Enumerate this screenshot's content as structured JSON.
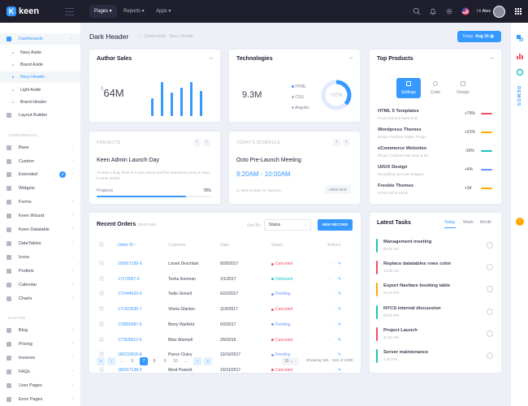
{
  "topbar": {
    "logo": "keen",
    "nav": [
      "Pages",
      "Reports",
      "Apps"
    ],
    "user_greeting": "Hi",
    "user_name": "Alex"
  },
  "sidebar": {
    "top_items": [
      {
        "label": "Dashboards"
      }
    ],
    "dash_sub": [
      "Navy Aside",
      "Brand Aside",
      "Navy Header",
      "Light Aside",
      "Brand Header"
    ],
    "layout_builder": "Layout Builder",
    "components_head": "COMPONENTS",
    "components": [
      "Base",
      "Custom",
      "Extended",
      "Widgets",
      "Forms",
      "Keen Wizard",
      "Keen Datatable",
      "DataTables",
      "Icons",
      "Portlets",
      "Calendar",
      "Charts"
    ],
    "extended_badge": "2",
    "custom_head": "CUSTOM",
    "custom": [
      "Blog",
      "Pricing",
      "Invoices",
      "FAQs",
      "User Pages",
      "Error Pages"
    ]
  },
  "subheader": {
    "title": "Dark Header",
    "crumbs": [
      "Dashboards",
      "Navy Header"
    ],
    "date_label": "Today:",
    "date_value": "Aug 16"
  },
  "author_sales": {
    "title": "Author Sales",
    "currency": "$",
    "value": "64M",
    "bars": [
      0.5,
      0.95,
      0.65,
      0.8,
      0.95,
      0.7
    ]
  },
  "technologies": {
    "title": "Technologies",
    "value": "9.3M",
    "legend": [
      "HTML",
      "CSS",
      "Angular"
    ],
    "percent": "+37%",
    "percent_value": 0.37
  },
  "top_products": {
    "title": "Top Products",
    "tabs": [
      "Settings",
      "Code",
      "Design"
    ],
    "items": [
      {
        "name": "HTML 5 Templates",
        "sub": "Front-end and Back-end",
        "value": "+79%",
        "color": "#f64e60"
      },
      {
        "name": "Wordpress Themes",
        "sub": "Shops, Fashion Styles, Plugin",
        "value": "+21%",
        "color": "#ffa800"
      },
      {
        "name": "eCommerce Websites",
        "sub": "Shops, Fashion web sites & etc",
        "value": "-16%",
        "color": "#1bc5bd"
      },
      {
        "name": "UI/UX Design",
        "sub": "Everything you ever imagine",
        "value": "+4%",
        "color": "#6993ff"
      },
      {
        "name": "Freebie Themes",
        "sub": "Front-end & Admin",
        "value": "+34",
        "color": "#ffa800"
      }
    ]
  },
  "projects": {
    "title": "PROJECTS",
    "name": "Keen Admin Launch Day",
    "desc": "To start a blog, think of a topic about and first brainstorm party is ways to write details",
    "progress_label": "Progress",
    "progress_value": "78%",
    "progress": 0.78
  },
  "schedule": {
    "title": "TODAY'S SCHEDULE",
    "name": "Octo Pre-Launch Meeting",
    "time": "9:20AM - 10:00AM",
    "address": "4000 & Main St. Norwich,",
    "view_map": "VIEW MAP"
  },
  "orders": {
    "title": "Recent Orders",
    "total": "32500 total",
    "sort_label": "Sort By:",
    "sort_value": "Status",
    "new_record": "NEW RECORD",
    "columns": [
      "Order ID",
      "Customer",
      "Date",
      "Status",
      "Actions"
    ],
    "rows": [
      {
        "id": "169817189-X",
        "customer": "Lorant Deschlain",
        "date": "9/28/2017",
        "status": "Canceled"
      },
      {
        "id": "17170057-0",
        "customer": "Tosha Ikonman",
        "date": "1/1/2017",
        "status": "Delivered"
      },
      {
        "id": "172444633-9",
        "customer": "Tedie Ginnell",
        "date": "6/22/2017",
        "status": "Pending"
      },
      {
        "id": "171423636-7",
        "customer": "Vitoria Glanton",
        "date": "11/6/2017",
        "status": "Canceled"
      },
      {
        "id": "176850987-5",
        "customer": "Binny Warfield",
        "date": "6/3/2017",
        "status": "Pending"
      },
      {
        "id": "177825812-6",
        "customer": "Bliss Wormell",
        "date": "2/9/2016",
        "status": "Canceled"
      },
      {
        "id": "180232818-8",
        "customer": "Pierce Cluley",
        "date": "10/16/2017",
        "status": "Pending"
      },
      {
        "id": "180417138-0",
        "customer": "Mord Peskett",
        "date": "10/31/2017",
        "status": "Canceled"
      }
    ],
    "pages": [
      "...",
      "6",
      "7",
      "8",
      "9",
      "10",
      "..."
    ],
    "per_page": "30",
    "showing": "Showing 181 - 210 of 1000"
  },
  "tasks": {
    "title": "Latest Tasks",
    "tabs": [
      "Today",
      "Week",
      "Month"
    ],
    "items": [
      {
        "name": "Management meeting",
        "time": "09:30 AM",
        "color": "#1bc5bd"
      },
      {
        "name": "Replace datatables rows color",
        "time": "12:00 AM",
        "color": "#f64e60"
      },
      {
        "name": "Export Navitare booking table",
        "time": "01:20 PM",
        "color": "#ffa800"
      },
      {
        "name": "NYCS internal discussion",
        "time": "03:00 PM",
        "color": "#1bc5bd"
      },
      {
        "name": "Project Launch",
        "time": "11:00 AM",
        "color": "#f64e60"
      },
      {
        "name": "Server maintenance",
        "time": "4:30 PM",
        "color": "#1bc5bd"
      }
    ]
  },
  "right_demo": "DEMOS",
  "colors": {
    "primary": "#3699ff",
    "danger": "#f64e60",
    "success": "#1bc5bd",
    "warning": "#ffa800",
    "dark": "#1e1e2d"
  }
}
